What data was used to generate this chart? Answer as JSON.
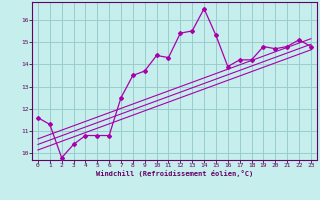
{
  "xlabel": "Windchill (Refroidissement éolien,°C)",
  "ylabel": "",
  "bg_color": "#c5eeed",
  "line_color": "#aa00aa",
  "grid_color": "#99cccc",
  "xlim": [
    -0.5,
    23.5
  ],
  "ylim": [
    9.7,
    16.8
  ],
  "x_ticks": [
    0,
    1,
    2,
    3,
    4,
    5,
    6,
    7,
    8,
    9,
    10,
    11,
    12,
    13,
    14,
    15,
    16,
    17,
    18,
    19,
    20,
    21,
    22,
    23
  ],
  "y_ticks": [
    10,
    11,
    12,
    13,
    14,
    15,
    16
  ],
  "curve_x": [
    0,
    1,
    2,
    3,
    4,
    5,
    6,
    7,
    8,
    9,
    10,
    11,
    12,
    13,
    14,
    15,
    16,
    17,
    18,
    19,
    20,
    21,
    22,
    23
  ],
  "curve_y": [
    11.6,
    11.3,
    9.8,
    10.4,
    10.8,
    10.8,
    10.8,
    12.5,
    13.5,
    13.7,
    14.4,
    14.3,
    15.4,
    15.5,
    16.5,
    15.3,
    13.9,
    14.2,
    14.2,
    14.8,
    14.7,
    14.8,
    15.1,
    14.8
  ],
  "line1_x": [
    0,
    23
  ],
  "line1_y": [
    10.15,
    14.65
  ],
  "line2_x": [
    0,
    23
  ],
  "line2_y": [
    10.4,
    14.9
  ],
  "line3_x": [
    0,
    23
  ],
  "line3_y": [
    10.65,
    15.15
  ]
}
